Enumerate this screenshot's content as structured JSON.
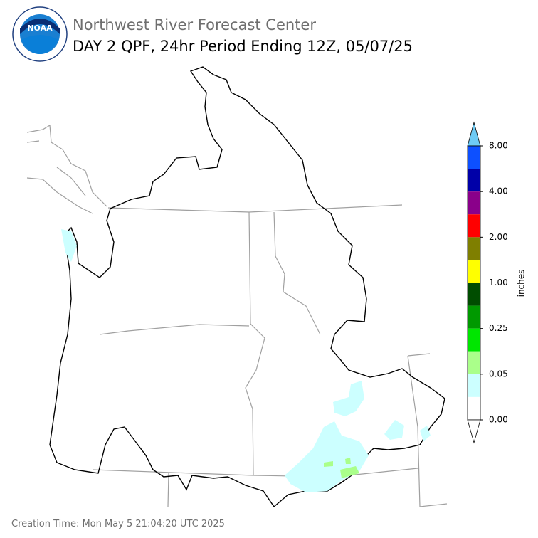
{
  "header": {
    "organization": "Northwest River Forecast Center",
    "title": "DAY 2 QPF, 24hr Period Ending 12Z, 05/07/25",
    "logo_text": "NOAA"
  },
  "colorbar": {
    "label": "inches",
    "top_color": "#6ecbf5",
    "colors": [
      "#0d50ff",
      "#0000a8",
      "#8a008a",
      "#ff0000",
      "#7f7f00",
      "#ffff00",
      "#004d00",
      "#009900",
      "#00e600",
      "#aaff8a",
      "#ccffff",
      "#ffffff"
    ],
    "ticks": [
      {
        "label": "8.00",
        "segment": 0
      },
      {
        "label": "4.00",
        "segment": 2
      },
      {
        "label": "2.00",
        "segment": 4
      },
      {
        "label": "1.00",
        "segment": 6
      },
      {
        "label": "0.25",
        "segment": 8
      },
      {
        "label": "0.05",
        "segment": 10
      },
      {
        "label": "0.00",
        "segment": 12
      }
    ]
  },
  "footer": {
    "creation_time": "Creation Time: Mon May 5 21:04:20 UTC 2025"
  }
}
